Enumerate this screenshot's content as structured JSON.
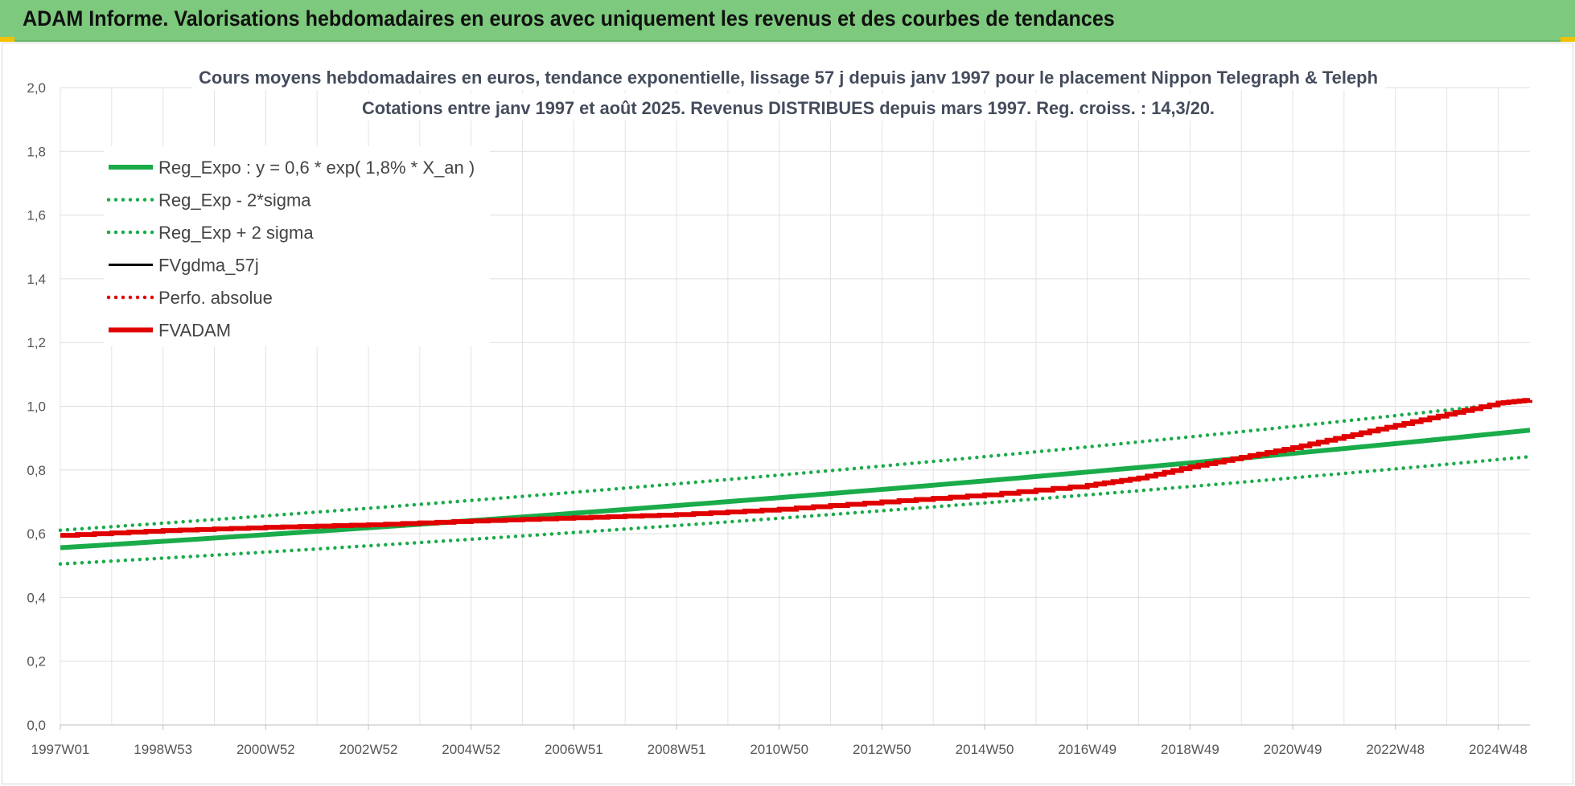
{
  "header": {
    "title": "ADAM Informe. Valorisations hebdomadaires en euros avec uniquement les revenus et des courbes de tendances",
    "background_color": "#7dc97d"
  },
  "chart_data": {
    "type": "line",
    "title": "Cours moyens hebdomadaires en euros, tendance exponentielle, lissage 57 j depuis janv 1997 pour le placement Nippon Telegraph & Teleph",
    "subtitle": "Cotations entre janv 1997 et août 2025.  Revenus DISTRIBUES depuis mars 1997. Reg. croiss. : 14,3/20.",
    "xlabel": "",
    "ylabel": "",
    "ylim": [
      0,
      2.0
    ],
    "yticks": [
      "0,0",
      "0,2",
      "0,4",
      "0,6",
      "0,8",
      "1,0",
      "1,2",
      "1,4",
      "1,6",
      "1,8",
      "2,0"
    ],
    "xlim": [
      1997.0,
      2025.62
    ],
    "xtick_labels": [
      "1997W01",
      "1998W53",
      "2000W52",
      "2002W52",
      "2004W52",
      "2006W51",
      "2008W51",
      "2010W50",
      "2012W50",
      "2014W50",
      "2016W49",
      "2018W49",
      "2020W49",
      "2022W48",
      "2024W48"
    ],
    "xtick_positions": [
      1997.0,
      1999.0,
      2001.0,
      2003.0,
      2005.0,
      2007.0,
      2009.0,
      2011.0,
      2013.0,
      2015.0,
      2017.0,
      2019.0,
      2021.0,
      2023.0,
      2025.0
    ],
    "grid": true,
    "legend_position": "top-left",
    "series": [
      {
        "name": "Reg_Expo : y = 0,6 * exp( 1,8% *  X_an )",
        "color": "#1aab4a",
        "style": "solid",
        "x": [
          1997.0,
          2025.62
        ],
        "y": [
          0.556,
          0.925
        ]
      },
      {
        "name": "Reg_Exp - 2*sigma",
        "color": "#1aab4a",
        "style": "dotted",
        "x": [
          1997.0,
          2025.62
        ],
        "y": [
          0.505,
          0.842
        ]
      },
      {
        "name": "Reg_Exp + 2 sigma",
        "color": "#1aab4a",
        "style": "dotted",
        "x": [
          1997.0,
          2025.62
        ],
        "y": [
          0.611,
          1.017
        ]
      },
      {
        "name": "FVgdma_57j",
        "color": "#000000",
        "style": "solid",
        "x": [],
        "y": []
      },
      {
        "name": "Perfo. absolue",
        "color": "#e00000",
        "style": "dotted",
        "x": [],
        "y": []
      },
      {
        "name": "FVADAM",
        "color": "#e00000",
        "style": "solid",
        "x": [
          1997.0,
          1999.0,
          2001.0,
          2003.0,
          2005.0,
          2007.0,
          2009.0,
          2011.0,
          2013.0,
          2015.0,
          2017.0,
          2018.0,
          2019.0,
          2020.0,
          2021.0,
          2022.0,
          2023.0,
          2024.0,
          2025.0,
          2025.62
        ],
        "y": [
          0.595,
          0.61,
          0.62,
          0.628,
          0.64,
          0.65,
          0.66,
          0.677,
          0.7,
          0.722,
          0.752,
          0.775,
          0.81,
          0.84,
          0.87,
          0.905,
          0.94,
          0.975,
          1.01,
          1.02
        ]
      }
    ]
  }
}
